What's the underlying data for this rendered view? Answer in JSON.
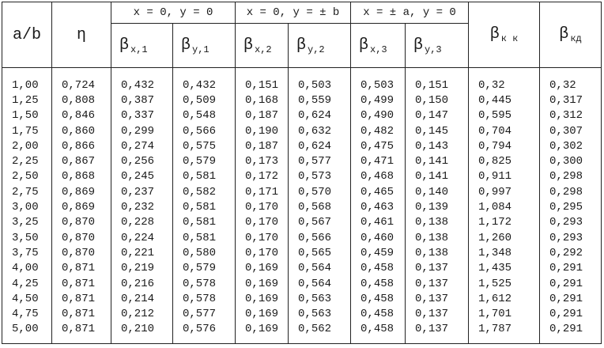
{
  "header": {
    "row_label": "a/b",
    "eta": "η",
    "groups": [
      "x = 0, y = 0",
      "x = 0, y = ± b",
      "x = ± a, y = 0"
    ],
    "columns": [
      {
        "symbol": "β",
        "sub": "x,1"
      },
      {
        "symbol": "β",
        "sub": "y,1"
      },
      {
        "symbol": "β",
        "sub": "x,2"
      },
      {
        "symbol": "β",
        "sub": "y,2"
      },
      {
        "symbol": "β",
        "sub": "x,3"
      },
      {
        "symbol": "β",
        "sub": "y,3"
      }
    ],
    "extra": [
      {
        "symbol": "β",
        "sub": "к к"
      },
      {
        "symbol": "β",
        "sub": "кд"
      }
    ]
  },
  "rows": [
    [
      "1,00",
      "0,724",
      "0,432",
      "0,432",
      "0,151",
      "0,503",
      "0,503",
      "0,151",
      "0,32",
      "0,32"
    ],
    [
      "1,25",
      "0,808",
      "0,387",
      "0,509",
      "0,168",
      "0,559",
      "0,499",
      "0,150",
      "0,445",
      "0,317"
    ],
    [
      "1,50",
      "0,846",
      "0,337",
      "0,548",
      "0,187",
      "0,624",
      "0,490",
      "0,147",
      "0,595",
      "0,312"
    ],
    [
      "1,75",
      "0,860",
      "0,299",
      "0,566",
      "0,190",
      "0,632",
      "0,482",
      "0,145",
      "0,704",
      "0,307"
    ],
    [
      "2,00",
      "0,866",
      "0,274",
      "0,575",
      "0,187",
      "0,624",
      "0,475",
      "0,143",
      "0,794",
      "0,302"
    ],
    [
      "2,25",
      "0,867",
      "0,256",
      "0,579",
      "0,173",
      "0,577",
      "0,471",
      "0,141",
      "0,825",
      "0,300"
    ],
    [
      "2,50",
      "0,868",
      "0,245",
      "0,581",
      "0,172",
      "0,573",
      "0,468",
      "0,141",
      "0,911",
      "0,298"
    ],
    [
      "2,75",
      "0,869",
      "0,237",
      "0,582",
      "0,171",
      "0,570",
      "0,465",
      "0,140",
      "0,997",
      "0,298"
    ],
    [
      "3,00",
      "0,869",
      "0,232",
      "0,581",
      "0,170",
      "0,568",
      "0,463",
      "0,139",
      "1,084",
      "0,295"
    ],
    [
      "3,25",
      "0,870",
      "0,228",
      "0,581",
      "0,170",
      "0,567",
      "0,461",
      "0,138",
      "1,172",
      "0,293"
    ],
    [
      "3,50",
      "0,870",
      "0,224",
      "0,581",
      "0,170",
      "0,566",
      "0,460",
      "0,138",
      "1,260",
      "0,293"
    ],
    [
      "3,75",
      "0,870",
      "0,221",
      "0,580",
      "0,170",
      "0,565",
      "0,459",
      "0,138",
      "1,348",
      "0,292"
    ],
    [
      "4,00",
      "0,871",
      "0,219",
      "0,579",
      "0,169",
      "0,564",
      "0,458",
      "0,137",
      "1,435",
      "0,291"
    ],
    [
      "4,25",
      "0,871",
      "0,216",
      "0,578",
      "0,169",
      "0,564",
      "0,458",
      "0,137",
      "1,525",
      "0,291"
    ],
    [
      "4,50",
      "0,871",
      "0,214",
      "0,578",
      "0,169",
      "0,563",
      "0,458",
      "0,137",
      "1,612",
      "0,291"
    ],
    [
      "4,75",
      "0,871",
      "0,212",
      "0,577",
      "0,169",
      "0,563",
      "0,458",
      "0,137",
      "1,701",
      "0,291"
    ],
    [
      "5,00",
      "0,871",
      "0,210",
      "0,576",
      "0,169",
      "0,562",
      "0,458",
      "0,137",
      "1,787",
      "0,291"
    ]
  ]
}
